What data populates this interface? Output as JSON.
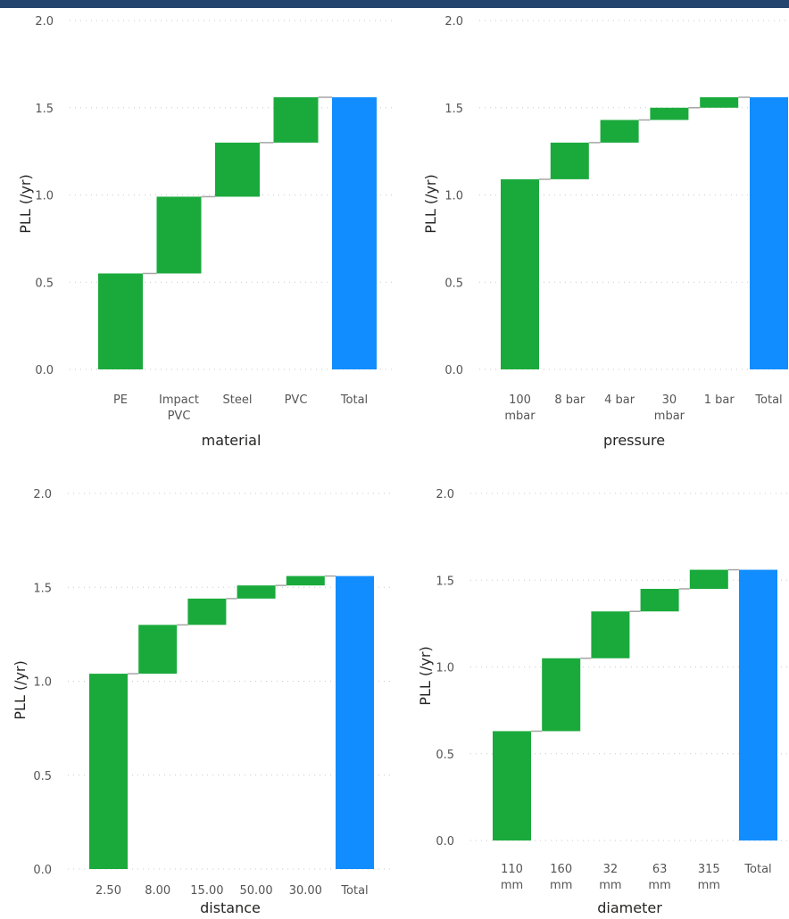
{
  "chart_data": [
    {
      "type": "waterfall",
      "xlabel": "material",
      "ylabel": "PLL (/yr)",
      "ylim": [
        0,
        2.0
      ],
      "yticks": [
        "0.0",
        "0.5",
        "1.0",
        "1.5",
        "2.0"
      ],
      "grid": true,
      "categories": [
        [
          "PE"
        ],
        [
          "Impact",
          "PVC"
        ],
        [
          "Steel"
        ],
        [
          "PVC"
        ],
        [
          "Total"
        ]
      ],
      "values": [
        0.55,
        0.44,
        0.31,
        0.26,
        1.56
      ],
      "is_total": [
        false,
        false,
        false,
        false,
        true
      ],
      "colors": {
        "increase": "#1aaa3c",
        "total": "#118dff"
      }
    },
    {
      "type": "waterfall",
      "xlabel": "pressure",
      "ylabel": "PLL (/yr)",
      "ylim": [
        0,
        2.0
      ],
      "yticks": [
        "0.0",
        "0.5",
        "1.0",
        "1.5",
        "2.0"
      ],
      "grid": true,
      "categories": [
        [
          "100",
          "mbar"
        ],
        [
          "8 bar"
        ],
        [
          "4 bar"
        ],
        [
          "30",
          "mbar"
        ],
        [
          "1 bar"
        ],
        [
          "Total"
        ]
      ],
      "values": [
        1.09,
        0.21,
        0.13,
        0.07,
        0.06,
        1.56
      ],
      "is_total": [
        false,
        false,
        false,
        false,
        false,
        true
      ],
      "colors": {
        "increase": "#1aaa3c",
        "total": "#118dff"
      }
    },
    {
      "type": "waterfall",
      "xlabel": "distance",
      "ylabel": "PLL (/yr)",
      "ylim": [
        0,
        2.0
      ],
      "yticks": [
        "0.0",
        "0.5",
        "1.0",
        "1.5",
        "2.0"
      ],
      "grid": true,
      "categories": [
        [
          "2.50"
        ],
        [
          "8.00"
        ],
        [
          "15.00"
        ],
        [
          "50.00"
        ],
        [
          "30.00"
        ],
        [
          "Total"
        ]
      ],
      "values": [
        1.04,
        0.26,
        0.14,
        0.07,
        0.05,
        1.56
      ],
      "is_total": [
        false,
        false,
        false,
        false,
        false,
        true
      ],
      "colors": {
        "increase": "#1aaa3c",
        "total": "#118dff"
      }
    },
    {
      "type": "waterfall",
      "xlabel": "diameter",
      "ylabel": "PLL (/yr)",
      "ylim": [
        0,
        2.0
      ],
      "yticks": [
        "0.0",
        "0.5",
        "1.0",
        "1.5",
        "2.0"
      ],
      "grid": true,
      "categories": [
        [
          "110",
          "mm"
        ],
        [
          "160",
          "mm"
        ],
        [
          "32",
          "mm"
        ],
        [
          "63",
          "mm"
        ],
        [
          "315",
          "mm"
        ],
        [
          "Total"
        ]
      ],
      "values": [
        0.63,
        0.42,
        0.27,
        0.13,
        0.11,
        1.56
      ],
      "is_total": [
        false,
        false,
        false,
        false,
        false,
        true
      ],
      "colors": {
        "increase": "#1aaa3c",
        "total": "#118dff"
      }
    }
  ]
}
